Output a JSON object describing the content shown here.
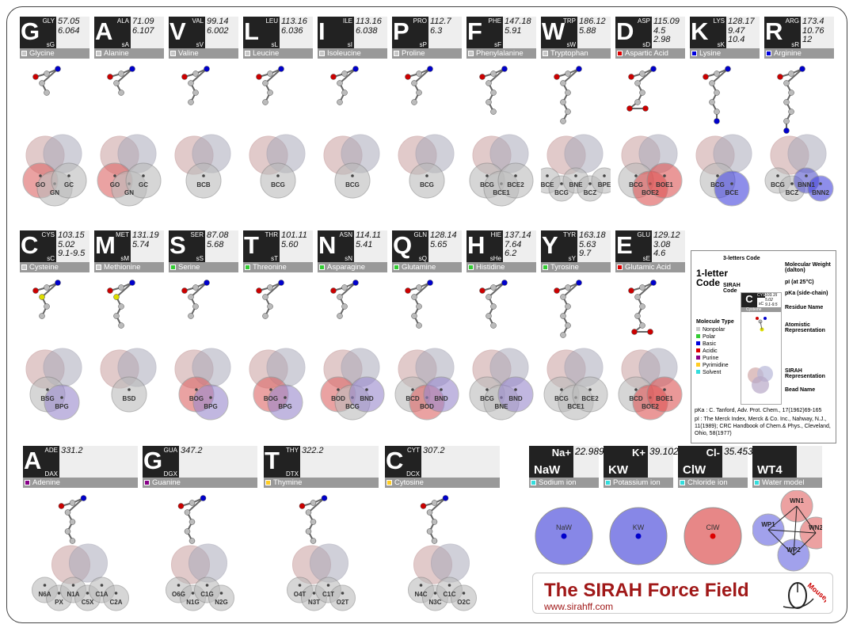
{
  "residues": [
    {
      "code": "GLY",
      "letter": "G",
      "sirah": "sG",
      "vals": [
        "57.05",
        "6.064"
      ],
      "name": "Glycine",
      "type": "nonpolar",
      "beads": [
        "GO",
        "GN",
        "GC"
      ]
    },
    {
      "code": "ALA",
      "letter": "A",
      "sirah": "sA",
      "vals": [
        "71.09",
        "6.107"
      ],
      "name": "Alanine",
      "type": "nonpolar",
      "beads": [
        "GO",
        "GN",
        "GC"
      ]
    },
    {
      "code": "VAL",
      "letter": "V",
      "sirah": "sV",
      "vals": [
        "99.14",
        "6.002"
      ],
      "name": "Valine",
      "type": "nonpolar",
      "beads": [
        "BCB"
      ]
    },
    {
      "code": "LEU",
      "letter": "L",
      "sirah": "sL",
      "vals": [
        "113.16",
        "6.036"
      ],
      "name": "Leucine",
      "type": "nonpolar",
      "beads": [
        "BCG"
      ]
    },
    {
      "code": "ILE",
      "letter": "I",
      "sirah": "sI",
      "vals": [
        "113.16",
        "6.038"
      ],
      "name": "Isoleucine",
      "type": "nonpolar",
      "beads": [
        "BCG"
      ]
    },
    {
      "code": "PRO",
      "letter": "P",
      "sirah": "sP",
      "vals": [
        "112.7",
        "6.3"
      ],
      "name": "Proline",
      "type": "nonpolar",
      "beads": [
        "BCG"
      ]
    },
    {
      "code": "PHE",
      "letter": "F",
      "sirah": "sF",
      "vals": [
        "147.18",
        "5.91"
      ],
      "name": "Phenylalanine",
      "type": "nonpolar",
      "beads": [
        "BCG",
        "BCE1",
        "BCE2"
      ]
    },
    {
      "code": "TRP",
      "letter": "W",
      "sirah": "sW",
      "vals": [
        "186.12",
        "5.88"
      ],
      "name": "Tryptophan",
      "type": "nonpolar",
      "beads": [
        "BCE",
        "BCG",
        "BNE",
        "BCZ",
        "BPE"
      ]
    },
    {
      "code": "ASP",
      "letter": "D",
      "sirah": "sD",
      "vals": [
        "115.09",
        "4.5",
        "2.98"
      ],
      "name": "Aspartic Acid",
      "type": "acidic",
      "beads": [
        "BCG",
        "BOE2",
        "BOE1"
      ]
    },
    {
      "code": "LYS",
      "letter": "K",
      "sirah": "sK",
      "vals": [
        "128.17",
        "9.47",
        "10.4"
      ],
      "name": "Lysine",
      "type": "basic",
      "beads": [
        "BCG",
        "BCE"
      ]
    },
    {
      "code": "ARG",
      "letter": "R",
      "sirah": "sR",
      "vals": [
        "173.4",
        "10.76",
        "12"
      ],
      "name": "Arginine",
      "type": "basic",
      "beads": [
        "BCG",
        "BCZ",
        "BNN1",
        "BNN2"
      ]
    },
    {
      "code": "CYS",
      "letter": "C",
      "sirah": "sC",
      "vals": [
        "103.15",
        "5.02",
        "9.1-9.5"
      ],
      "name": "Cysteine",
      "type": "nonpolar",
      "beads": [
        "BSG",
        "BPG"
      ]
    },
    {
      "code": "MET",
      "letter": "M",
      "sirah": "sM",
      "vals": [
        "131.19",
        "5.74"
      ],
      "name": "Methionine",
      "type": "nonpolar",
      "beads": [
        "BSD"
      ]
    },
    {
      "code": "SER",
      "letter": "S",
      "sirah": "sS",
      "vals": [
        "87.08",
        "5.68"
      ],
      "name": "Serine",
      "type": "polar",
      "beads": [
        "BOG",
        "BPG"
      ]
    },
    {
      "code": "THR",
      "letter": "T",
      "sirah": "sT",
      "vals": [
        "101.11",
        "5.60"
      ],
      "name": "Threonine",
      "type": "polar",
      "beads": [
        "BOG",
        "BPG"
      ]
    },
    {
      "code": "ASN",
      "letter": "N",
      "sirah": "sN",
      "vals": [
        "114.11",
        "5.41"
      ],
      "name": "Asparagine",
      "type": "polar",
      "beads": [
        "BOD",
        "BCG",
        "BND"
      ]
    },
    {
      "code": "GLN",
      "letter": "Q",
      "sirah": "sQ",
      "vals": [
        "128.14",
        "5.65"
      ],
      "name": "Glutamine",
      "type": "polar",
      "beads": [
        "BCD",
        "BOD",
        "BND"
      ]
    },
    {
      "code": "HIE",
      "letter": "H",
      "sirah": "sHe",
      "vals": [
        "137.14",
        "7.64",
        "6.2"
      ],
      "name": "Histidine",
      "type": "polar",
      "beads": [
        "BCG",
        "BNE",
        "BND"
      ]
    },
    {
      "code": "TYR",
      "letter": "Y",
      "sirah": "sY",
      "vals": [
        "163.18",
        "5.63",
        "9.7"
      ],
      "name": "Tyrosine",
      "type": "polar",
      "beads": [
        "BCG",
        "BCE1",
        "BCE2"
      ]
    },
    {
      "code": "GLU",
      "letter": "E",
      "sirah": "sE",
      "vals": [
        "129.12",
        "3.08",
        "4.6"
      ],
      "name": "Glutamic Acid",
      "type": "acidic",
      "beads": [
        "BCD",
        "BOE2",
        "BOE1"
      ]
    }
  ],
  "nucleotides": [
    {
      "code": "ADE",
      "letter": "A",
      "sirah": "DAX",
      "vals": [
        "331.2"
      ],
      "name": "Adenine",
      "type": "purine",
      "beads": [
        "N6A",
        "PX",
        "N1A",
        "C5X",
        "C1A",
        "C2A"
      ]
    },
    {
      "code": "GUA",
      "letter": "G",
      "sirah": "DGX",
      "vals": [
        "347.2"
      ],
      "name": "Guanine",
      "type": "purine",
      "beads": [
        "O6G",
        "N1G",
        "C1G",
        "N2G"
      ]
    },
    {
      "code": "THY",
      "letter": "T",
      "sirah": "DTX",
      "vals": [
        "322.2"
      ],
      "name": "Thymine",
      "type": "pyrimidine",
      "beads": [
        "O4T",
        "N3T",
        "C1T",
        "O2T"
      ]
    },
    {
      "code": "CYT",
      "letter": "C",
      "sirah": "DCX",
      "vals": [
        "307.2"
      ],
      "name": "Cytosine",
      "type": "pyrimidine",
      "beads": [
        "N4C",
        "N3C",
        "C1C",
        "O2C"
      ]
    }
  ],
  "ions": [
    {
      "code": "Na+",
      "sirah": "NaW",
      "vals": [
        "22.989"
      ],
      "name": "Sodium ion",
      "beads": [
        "NaW"
      ]
    },
    {
      "code": "K+",
      "sirah": "KW",
      "vals": [
        "39.102"
      ],
      "name": "Potassium ion",
      "beads": [
        "KW"
      ]
    },
    {
      "code": "Cl-",
      "sirah": "ClW",
      "vals": [
        "35.453"
      ],
      "name": "Chloride ion",
      "beads": [
        "ClW"
      ]
    },
    {
      "code": "",
      "sirah": "WT4",
      "vals": [
        ""
      ],
      "name": "Water model",
      "beads": [
        "WN1",
        "WP1",
        "WN2",
        "WP2"
      ]
    }
  ],
  "colors": {
    "nonpolar": "#c8c8c8",
    "polar": "#33cc33",
    "basic": "#0000dd",
    "acidic": "#dd0000",
    "purine": "#880088",
    "pyrimidine": "#ffcc22",
    "solvent": "#33dddd"
  },
  "legend": {
    "three_letters": "3-letters Code",
    "one_letter": "1-letter Code",
    "sirah_code": "SIRAH Code",
    "mol_weight": "Molecular Weight (dalton)",
    "pi": "pI (at 25°C)",
    "pka": "pKa (side-chain)",
    "residue_name": "Residue Name",
    "atomistic": "Atomistic Representation",
    "sirah_rep": "SIRAH Representation",
    "bead_name": "Bead Name",
    "mol_type_title": "Molecule Type",
    "types": [
      "Nonpolar",
      "Polar",
      "Basic",
      "Acidic",
      "Purine",
      "Pyrimidine",
      "Solvent"
    ],
    "example": {
      "code": "CYS",
      "letter": "C",
      "sirah": "sC",
      "vals": [
        "103.15",
        "5.02",
        "9.1-9.5"
      ],
      "name": "Cysteine"
    },
    "ref1": "pKa : C. Tanford, Adv. Prot. Chem., 17(1962)69-165",
    "ref2": "pI : The Merck Index, Merck & Co. Inc., Nahway, N.J., 11(1989); CRC Handbook of Chem.& Phys., Cleveland, Ohio, 58(1977)"
  },
  "brand": {
    "title": "The SIRAH Force Field",
    "url": "www.sirahff.com",
    "logo_text": "Mousepad"
  }
}
